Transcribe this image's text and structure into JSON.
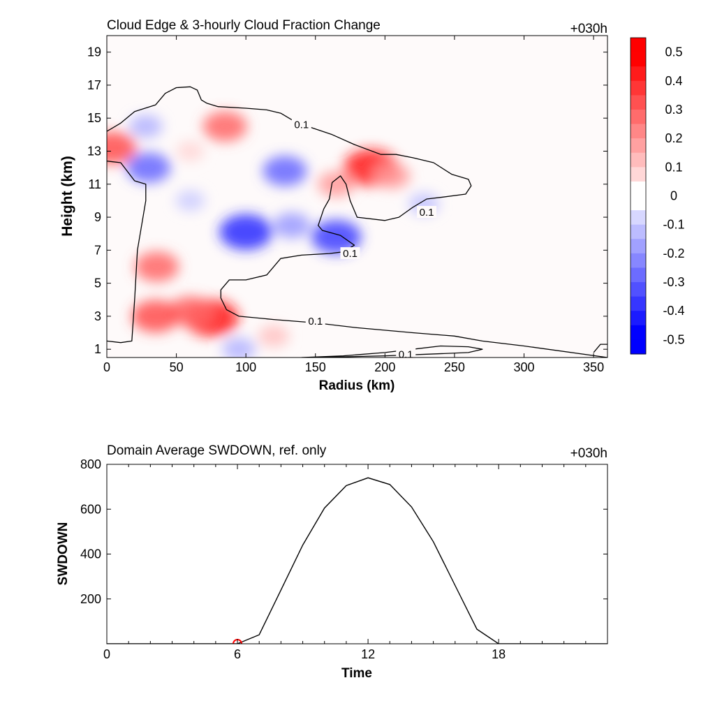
{
  "chart_data": [
    {
      "type": "heatmap",
      "title": "Cloud Edge & 3-hourly Cloud Fraction Change",
      "time_label": "+030h",
      "xlabel": "Radius (km)",
      "ylabel": "Height (km)",
      "xlim": [
        0,
        360
      ],
      "ylim": [
        0.5,
        20
      ],
      "xticks": [
        "0",
        "50",
        "100",
        "150",
        "200",
        "250",
        "300",
        "350"
      ],
      "yticks": [
        "1",
        "3",
        "5",
        "7",
        "9",
        "11",
        "13",
        "15",
        "17",
        "19"
      ],
      "colorbar": {
        "levels": [
          0.5,
          0.4,
          0.3,
          0.2,
          0.1,
          0,
          -0.1,
          -0.2,
          -0.3,
          -0.4,
          -0.5
        ],
        "labels": [
          "0.5",
          "0.4",
          "0.3",
          "0.2",
          "0.1",
          "0",
          "-0.1",
          "-0.2",
          "-0.3",
          "-0.4",
          "-0.5"
        ],
        "positive_color": "#ff0000",
        "negative_color": "#0000ff",
        "zero_color": "#ffffff"
      },
      "blobs": [
        {
          "x": 4,
          "y": 13.2,
          "value": 0.35
        },
        {
          "x": 75,
          "y": 2.9,
          "value": 0.45
        },
        {
          "x": 60,
          "y": 3.3,
          "value": 0.3
        },
        {
          "x": 35,
          "y": 3.0,
          "value": 0.35
        },
        {
          "x": 36,
          "y": 6.0,
          "value": 0.3
        },
        {
          "x": 85,
          "y": 14.5,
          "value": 0.3
        },
        {
          "x": 190,
          "y": 12.0,
          "value": 0.45
        },
        {
          "x": 165,
          "y": 11.0,
          "value": 0.2
        },
        {
          "x": 205,
          "y": 11.5,
          "value": 0.2
        },
        {
          "x": 120,
          "y": 1.8,
          "value": 0.12
        },
        {
          "x": 60,
          "y": 13.0,
          "value": 0.08
        },
        {
          "x": 100,
          "y": 8.1,
          "value": -0.42
        },
        {
          "x": 165,
          "y": 7.8,
          "value": -0.38
        },
        {
          "x": 128,
          "y": 11.8,
          "value": -0.3
        },
        {
          "x": 133,
          "y": 8.5,
          "value": -0.2
        },
        {
          "x": 30,
          "y": 12.0,
          "value": -0.3
        },
        {
          "x": 28,
          "y": 14.5,
          "value": -0.15
        },
        {
          "x": 228,
          "y": 9.8,
          "value": -0.12
        },
        {
          "x": 60,
          "y": 10.0,
          "value": -0.1
        },
        {
          "x": 95,
          "y": 1.0,
          "value": -0.15
        }
      ],
      "contours": [
        {
          "label": "0.1",
          "label_at": [
            [
              140,
              14.6
            ],
            [
              230,
              9.3
            ],
            [
              175,
              6.8
            ],
            [
              150,
              2.7
            ]
          ],
          "points": [
            [
              0,
              14.2
            ],
            [
              10,
              14.7
            ],
            [
              20,
              15.4
            ],
            [
              35,
              15.8
            ],
            [
              42,
              16.5
            ],
            [
              50,
              16.85
            ],
            [
              60,
              16.9
            ],
            [
              65,
              16.7
            ],
            [
              68,
              16.1
            ],
            [
              72,
              15.9
            ],
            [
              80,
              15.7
            ],
            [
              100,
              15.6
            ],
            [
              115,
              15.5
            ],
            [
              125,
              15.3
            ],
            [
              135,
              14.8
            ],
            [
              148,
              14.4
            ],
            [
              162,
              14.0
            ],
            [
              178,
              13.4
            ],
            [
              197,
              12.8
            ],
            [
              208,
              12.8
            ],
            [
              220,
              12.6
            ],
            [
              235,
              12.3
            ],
            [
              248,
              11.6
            ],
            [
              260,
              11.3
            ],
            [
              262,
              10.9
            ],
            [
              258,
              10.4
            ],
            [
              240,
              10.2
            ],
            [
              230,
              10.1
            ],
            [
              220,
              9.6
            ],
            [
              210,
              9.0
            ],
            [
              200,
              8.8
            ],
            [
              180,
              9.0
            ],
            [
              175,
              10.0
            ],
            [
              172,
              11.0
            ],
            [
              168,
              11.5
            ],
            [
              162,
              11.1
            ],
            [
              160,
              10.1
            ],
            [
              156,
              9.5
            ],
            [
              152,
              8.5
            ],
            [
              155,
              8.2
            ],
            [
              168,
              7.9
            ],
            [
              178,
              7.3
            ],
            [
              170,
              6.9
            ],
            [
              160,
              6.8
            ],
            [
              140,
              6.7
            ],
            [
              125,
              6.5
            ],
            [
              115,
              5.5
            ],
            [
              100,
              5.2
            ],
            [
              88,
              5.2
            ],
            [
              82,
              4.6
            ],
            [
              82,
              4.1
            ],
            [
              86,
              3.4
            ],
            [
              95,
              3.0
            ],
            [
              120,
              2.8
            ],
            [
              150,
              2.6
            ],
            [
              180,
              2.3
            ],
            [
              220,
              2.0
            ],
            [
              250,
              1.8
            ],
            [
              270,
              1.5
            ],
            [
              300,
              1.2
            ],
            [
              360,
              0.5
            ]
          ]
        },
        {
          "label": "",
          "label_at": [],
          "points": [
            [
              0,
              12.4
            ],
            [
              10,
              12.3
            ],
            [
              20,
              11.2
            ],
            [
              28,
              11.0
            ],
            [
              28,
              10.0
            ],
            [
              22,
              7.0
            ],
            [
              20,
              4.0
            ],
            [
              18,
              1.5
            ],
            [
              10,
              1.4
            ],
            [
              0,
              1.5
            ]
          ]
        },
        {
          "label": "0.1",
          "label_at": [
            [
              215,
              0.7
            ]
          ],
          "points": [
            [
              140,
              0.5
            ],
            [
              170,
              0.6
            ],
            [
              200,
              0.8
            ],
            [
              220,
              1.0
            ],
            [
              240,
              1.2
            ],
            [
              260,
              1.15
            ],
            [
              270,
              1.0
            ],
            [
              260,
              0.8
            ],
            [
              230,
              0.7
            ],
            [
              200,
              0.6
            ],
            [
              150,
              0.5
            ]
          ]
        },
        {
          "label": "",
          "label_at": [],
          "points": [
            [
              350,
              0.8
            ],
            [
              355,
              1.3
            ],
            [
              360,
              1.3
            ]
          ]
        }
      ]
    },
    {
      "type": "line",
      "title": "Domain Average SWDOWN, ref. only",
      "time_label": "+030h",
      "xlabel": "Time",
      "ylabel": "SWDOWN",
      "xlim": [
        0,
        23
      ],
      "ylim": [
        0,
        800
      ],
      "xticks": [
        "0",
        "6",
        "12",
        "18"
      ],
      "yticks": [
        "200",
        "400",
        "600",
        "800"
      ],
      "x": [
        0,
        1,
        2,
        3,
        4,
        5,
        6,
        7,
        8,
        9,
        10,
        11,
        12,
        13,
        14,
        15,
        16,
        17,
        18,
        19,
        20,
        21,
        22,
        23
      ],
      "values": [
        0,
        0,
        0,
        0,
        0,
        0,
        0,
        40,
        240,
        440,
        605,
        705,
        740,
        710,
        610,
        455,
        260,
        65,
        0,
        0,
        0,
        0,
        0,
        0
      ],
      "line_color": "#000000",
      "marker": {
        "x": 6,
        "y": 0,
        "color": "#ff0000"
      }
    }
  ]
}
